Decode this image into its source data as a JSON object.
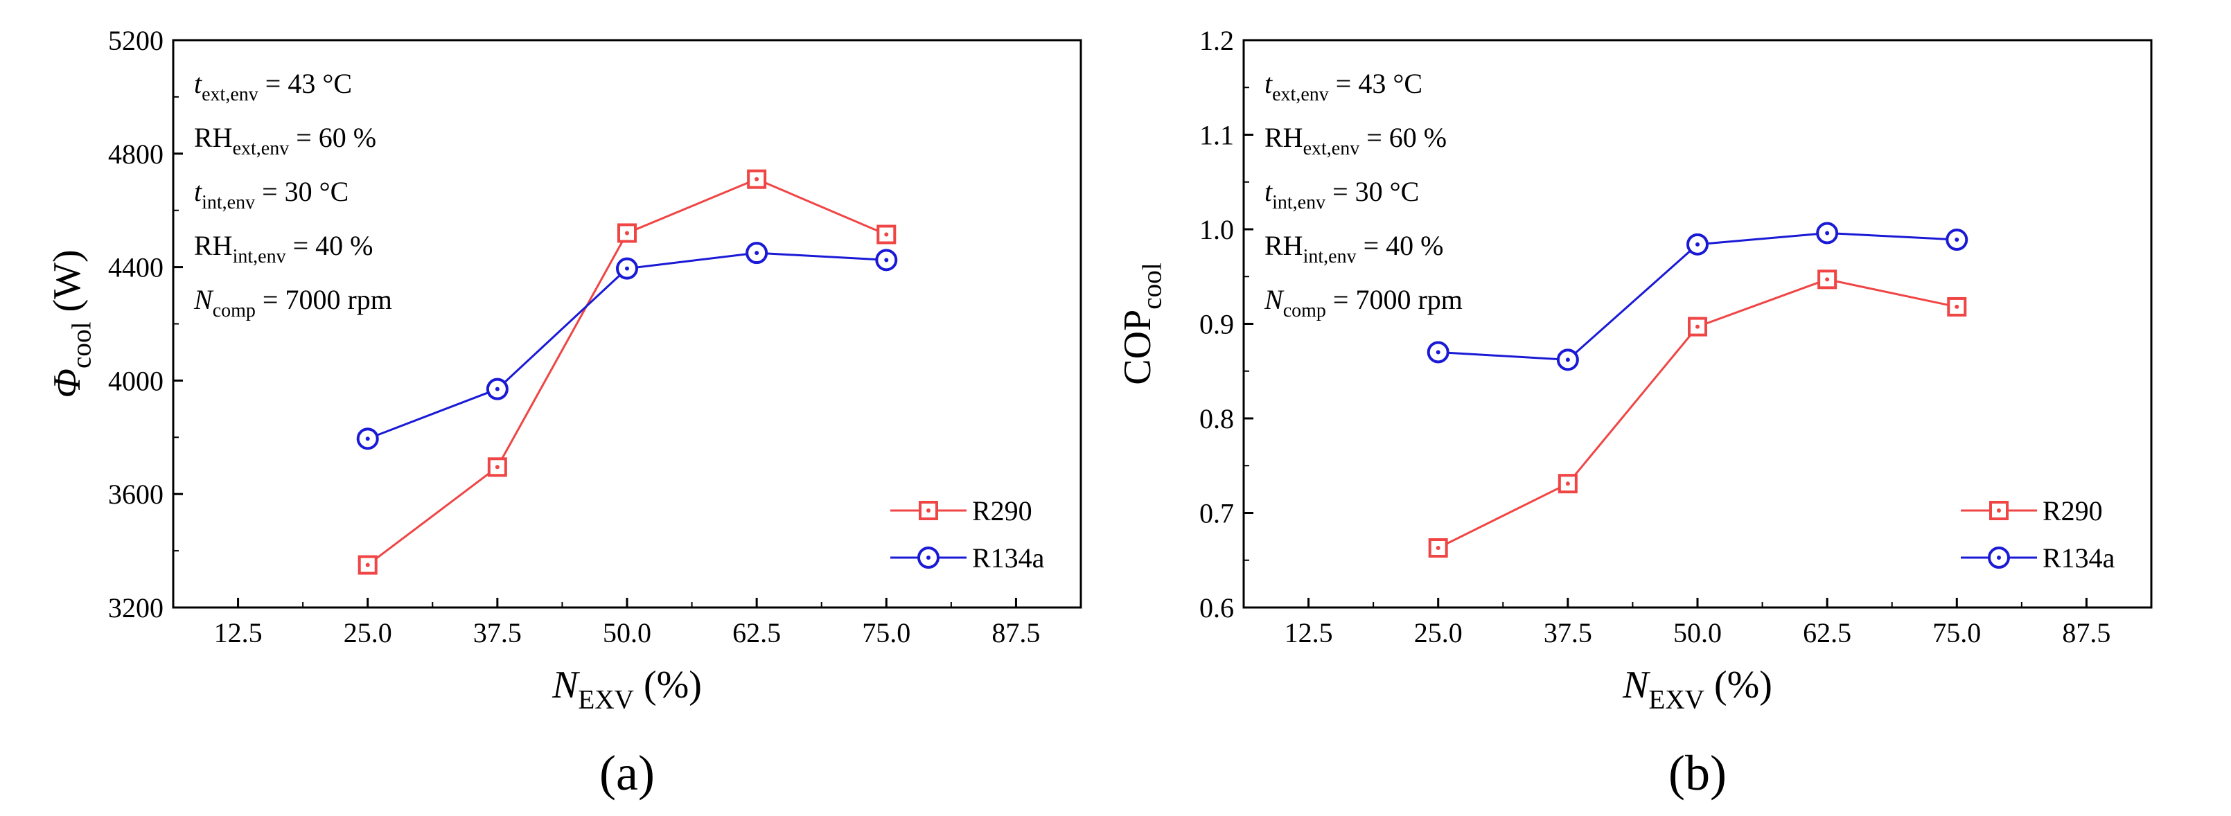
{
  "colors": {
    "r290": "#f04545",
    "r134a": "#1a1ad6",
    "axis": "#000000"
  },
  "conditions": {
    "t_ext": {
      "sym": "t",
      "sub": "ext,env",
      "rest": " = 43 °C"
    },
    "rh_ext": {
      "sym": "RH",
      "sub": "ext,env",
      "rest": " = 60 %"
    },
    "t_int": {
      "sym": "t",
      "sub": "int,env",
      "rest": " = 30 °C"
    },
    "rh_int": {
      "sym": "RH",
      "sub": "int,env",
      "rest": " = 40 %"
    },
    "n_comp": {
      "sym": "N",
      "sub": "comp",
      "rest": " = 7000 rpm"
    }
  },
  "chart_data": [
    {
      "type": "line",
      "panel_label": "(a)",
      "xlabel": {
        "sym": "N",
        "sub": "EXV",
        "rest": " (%)"
      },
      "ylabel": {
        "sym": "Φ",
        "sub": "cool",
        "rest": " (W)"
      },
      "xlim": [
        6.25,
        93.75
      ],
      "ylim": [
        3200,
        5200
      ],
      "xticks": [
        "12.5",
        "25.0",
        "37.5",
        "50.0",
        "62.5",
        "75.0",
        "87.5"
      ],
      "yticks": [
        "3200",
        "3600",
        "4000",
        "4400",
        "4800",
        "5200"
      ],
      "x": [
        25.0,
        37.5,
        50.0,
        62.5,
        75.0
      ],
      "series": [
        {
          "name": "R290",
          "marker": "square",
          "values": [
            3350,
            3695,
            4520,
            4710,
            4515
          ]
        },
        {
          "name": "R134a",
          "marker": "circle",
          "values": [
            3795,
            3970,
            4395,
            4450,
            4425
          ]
        }
      ],
      "legend_position": "lower-right"
    },
    {
      "type": "line",
      "panel_label": "(b)",
      "xlabel": {
        "sym": "N",
        "sub": "EXV",
        "rest": " (%)"
      },
      "ylabel": {
        "sym": "COP",
        "sub": "cool",
        "rest": ""
      },
      "xlim": [
        6.25,
        93.75
      ],
      "ylim": [
        0.6,
        1.2
      ],
      "xticks": [
        "12.5",
        "25.0",
        "37.5",
        "50.0",
        "62.5",
        "75.0",
        "87.5"
      ],
      "yticks": [
        "0.6",
        "0.7",
        "0.8",
        "0.9",
        "1.0",
        "1.1",
        "1.2"
      ],
      "x": [
        25.0,
        37.5,
        50.0,
        62.5,
        75.0
      ],
      "series": [
        {
          "name": "R290",
          "marker": "square",
          "values": [
            0.663,
            0.731,
            0.897,
            0.947,
            0.918
          ]
        },
        {
          "name": "R134a",
          "marker": "circle",
          "values": [
            0.87,
            0.862,
            0.984,
            0.996,
            0.989
          ]
        }
      ],
      "legend_position": "lower-right"
    }
  ]
}
